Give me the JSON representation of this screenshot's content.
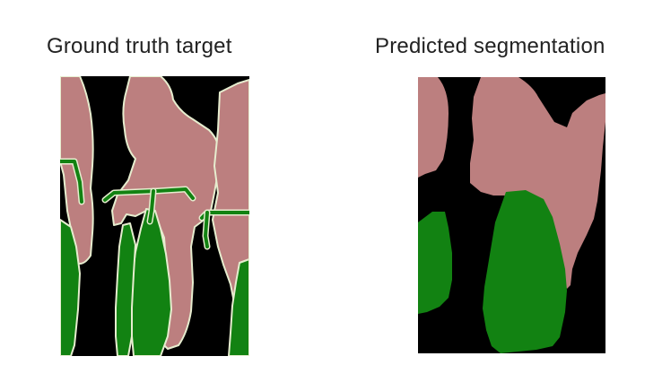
{
  "panels": {
    "ground_truth": {
      "title": "Ground truth target"
    },
    "prediction": {
      "title": "Predicted segmentation"
    }
  },
  "colors": {
    "background": "#000000",
    "person": "#bc7f7f",
    "bicycle": "#128212",
    "boundary": "#e6edcf"
  }
}
